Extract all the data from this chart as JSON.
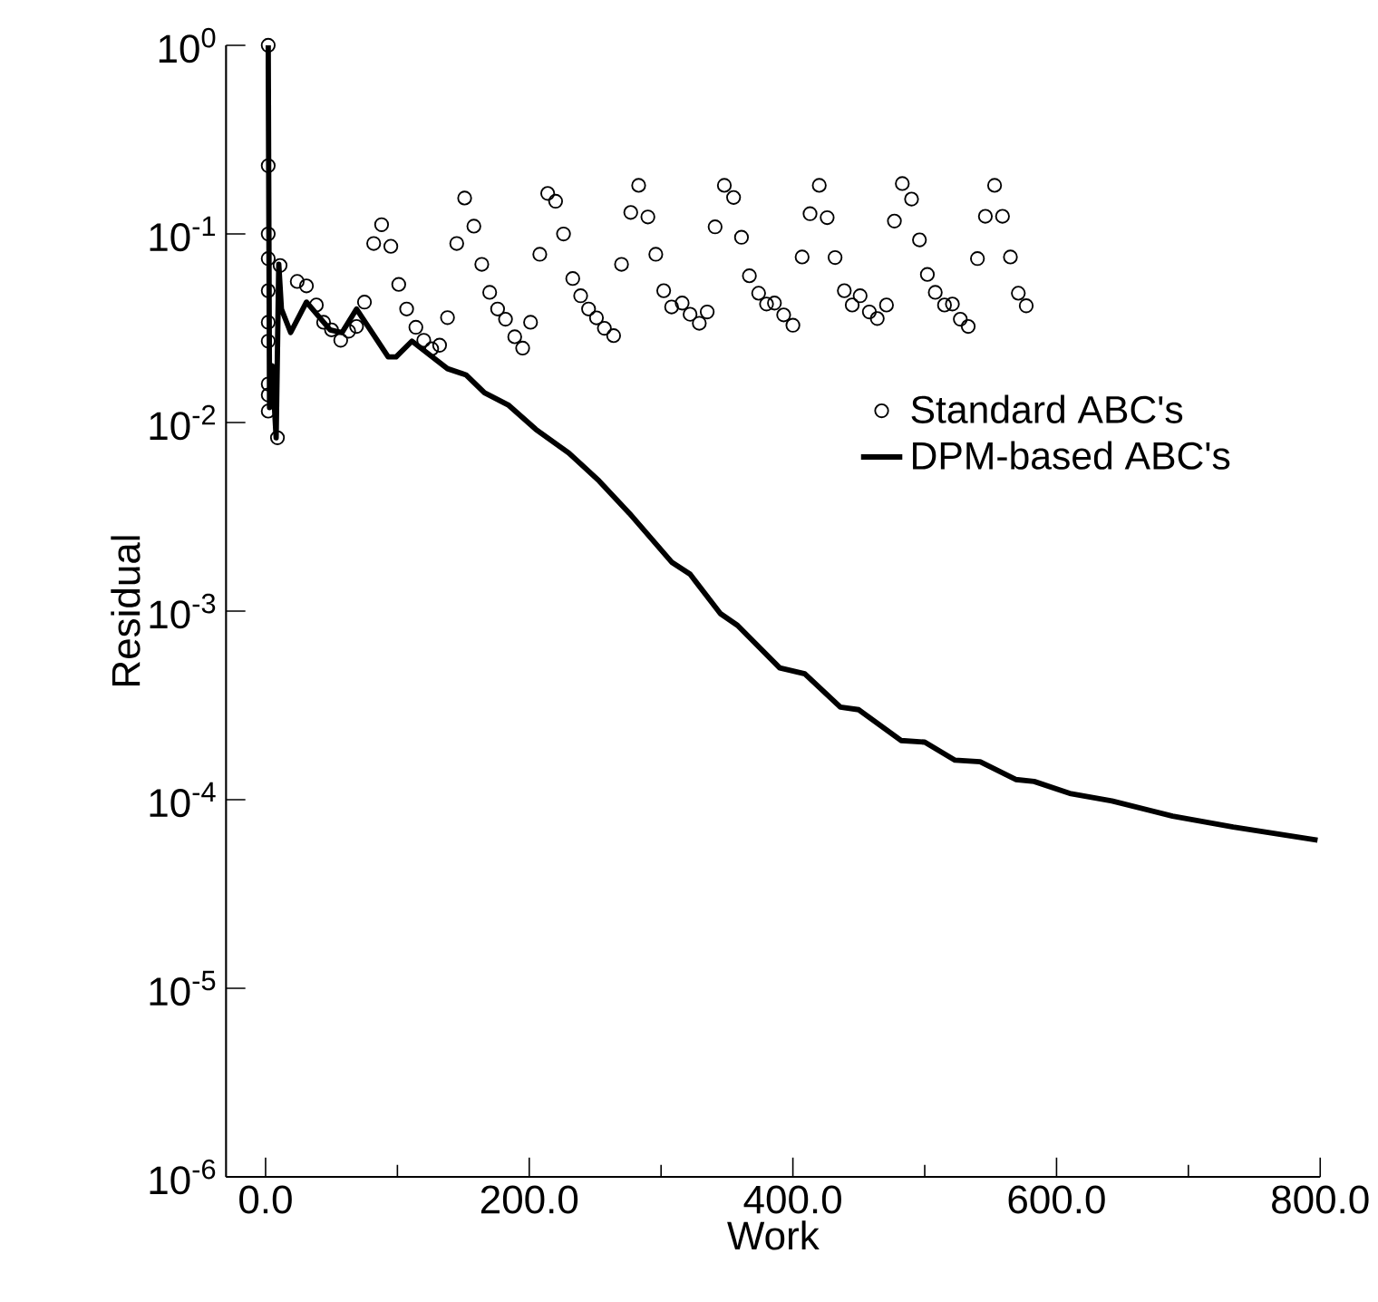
{
  "chart_data": {
    "type": "line",
    "xlabel": "Work",
    "ylabel": "Residual",
    "log": "y",
    "legend": "top right",
    "xlim": [
      -30,
      800
    ],
    "ylim": [
      1e-06,
      1
    ],
    "xticks": [
      {
        "value": 0,
        "label": "0.0"
      },
      {
        "value": 200,
        "label": "200.0"
      },
      {
        "value": 400,
        "label": "400.0"
      },
      {
        "value": 600,
        "label": "600.0"
      },
      {
        "value": 800,
        "label": "800.0"
      }
    ],
    "yticks": [
      {
        "value": 1e-06,
        "label": "10$^{-6}$"
      },
      {
        "value": 1e-05,
        "label": "10$^{-5}$"
      },
      {
        "value": 0.0001,
        "label": "10$^{-4}$"
      },
      {
        "value": 0.001,
        "label": "10$^{-3}$"
      },
      {
        "value": 0.01,
        "label": "10$^{-2}$"
      },
      {
        "value": 0.1,
        "label": "10$^{-1}$"
      },
      {
        "value": 1,
        "label": "10$^{0}$"
      }
    ],
    "series": [
      {
        "name": "Standard ABC's",
        "type": "scatter",
        "marker": "circle",
        "color": "#000000",
        "x": [
          2,
          2,
          2,
          2,
          2,
          2,
          2,
          2,
          2,
          2,
          9,
          11,
          24,
          31,
          38.5,
          44,
          50,
          57,
          63,
          69,
          75,
          82,
          88,
          95,
          101,
          107,
          114,
          120,
          126,
          132,
          138,
          145,
          151,
          158,
          164,
          170,
          176,
          182,
          189,
          195,
          201,
          208,
          214,
          220,
          226,
          233,
          239,
          245,
          251,
          257,
          264,
          270,
          277,
          283,
          290,
          296,
          302,
          308,
          316,
          322,
          329,
          335,
          341,
          348,
          355,
          361,
          367,
          374,
          380,
          386,
          393,
          400,
          407,
          413,
          420,
          426,
          432,
          439,
          445,
          451,
          458,
          464,
          471,
          477,
          483,
          490,
          496,
          502,
          508,
          515,
          521,
          527,
          533,
          540,
          546,
          553,
          559,
          565,
          571,
          577
        ],
        "values": [
          1,
          0.23,
          0.1,
          0.074,
          0.05,
          0.034,
          0.027,
          0.016,
          0.014,
          0.0115,
          0.0083,
          0.068,
          0.056,
          0.053,
          0.042,
          0.034,
          0.031,
          0.0273,
          0.0305,
          0.0323,
          0.0435,
          0.089,
          0.112,
          0.086,
          0.054,
          0.04,
          0.032,
          0.0273,
          0.0246,
          0.0257,
          0.036,
          0.089,
          0.155,
          0.11,
          0.069,
          0.049,
          0.04,
          0.0353,
          0.0285,
          0.0248,
          0.034,
          0.078,
          0.164,
          0.149,
          0.1,
          0.058,
          0.047,
          0.04,
          0.0359,
          0.0316,
          0.0289,
          0.069,
          0.13,
          0.181,
          0.123,
          0.078,
          0.05,
          0.041,
          0.043,
          0.0375,
          0.0336,
          0.0386,
          0.109,
          0.181,
          0.156,
          0.096,
          0.06,
          0.0485,
          0.0425,
          0.043,
          0.0372,
          0.0328,
          0.0755,
          0.128,
          0.181,
          0.122,
          0.075,
          0.05,
          0.042,
          0.047,
          0.0386,
          0.0356,
          0.042,
          0.117,
          0.185,
          0.153,
          0.093,
          0.061,
          0.049,
          0.042,
          0.0425,
          0.0353,
          0.0323,
          0.074,
          0.124,
          0.181,
          0.124,
          0.0755,
          0.0485,
          0.0416
        ]
      },
      {
        "name": "DPM-based ABC's",
        "type": "line",
        "marker": "none",
        "line_style": "solid",
        "color": "#000000",
        "x": [
          0,
          2,
          3,
          5,
          8,
          10,
          12,
          19,
          31,
          49,
          58,
          69,
          93,
          99,
          111,
          138,
          152,
          166,
          184,
          205,
          230,
          253,
          276,
          308,
          322,
          345,
          358,
          390,
          409,
          436,
          450,
          482,
          500,
          523,
          542,
          569,
          583,
          610,
          642,
          688,
          734,
          798
        ],
        "values": [
          1,
          1,
          0.012,
          0.02,
          0.0083,
          0.069,
          0.04,
          0.03,
          0.0435,
          0.031,
          0.03,
          0.04,
          0.0223,
          0.0223,
          0.027,
          0.0193,
          0.0179,
          0.0144,
          0.0124,
          0.0092,
          0.0069,
          0.0049,
          0.0033,
          0.00182,
          0.00157,
          0.00097,
          0.00084,
          0.0005,
          0.000465,
          0.00031,
          0.0003,
          0.000206,
          0.000202,
          0.000162,
          0.000159,
          0.000128,
          0.000125,
          0.000108,
          9.86e-05,
          8.19e-05,
          7.17e-05,
          6.1e-05
        ]
      }
    ]
  }
}
